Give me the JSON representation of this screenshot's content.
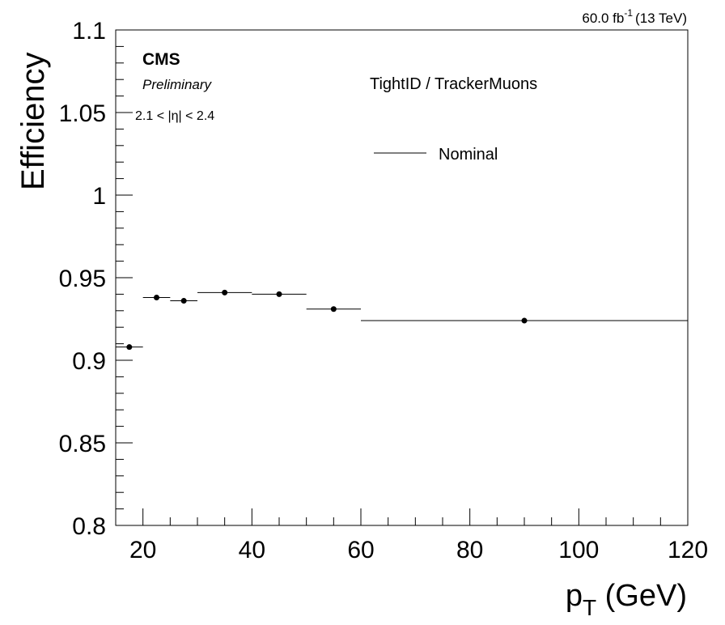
{
  "lumi": {
    "value": "60.0 fb",
    "exp": "-1",
    "energy": "(13 TeV)"
  },
  "labels": {
    "cms": "CMS",
    "preliminary": "Preliminary",
    "eta_range": "2.1 < |η| < 2.4",
    "selection": "TightID / TrackerMuons"
  },
  "chart_data": {
    "type": "scatter",
    "xlabel": {
      "main": "p",
      "sub": "T",
      "unit": " (GeV)"
    },
    "ylabel": "Efficiency",
    "xlim": [
      15,
      120
    ],
    "ylim": [
      0.8,
      1.1
    ],
    "xticks": [
      20,
      40,
      60,
      80,
      100,
      120
    ],
    "yticks": [
      0.8,
      0.85,
      0.9,
      0.95,
      1,
      1.05,
      1.1
    ],
    "ytick_labels": [
      "0.8",
      "0.85",
      "0.9",
      "0.95",
      "1",
      "1.05",
      "1.1"
    ],
    "legend": {
      "position": "top-center",
      "entries": [
        "Nominal"
      ]
    },
    "grid": false,
    "series": [
      {
        "name": "Nominal",
        "color": "#000000",
        "points": [
          {
            "x": 17.5,
            "xlow": 15,
            "xhigh": 20,
            "y": 0.908
          },
          {
            "x": 22.5,
            "xlow": 20,
            "xhigh": 25,
            "y": 0.938
          },
          {
            "x": 27.5,
            "xlow": 25,
            "xhigh": 30,
            "y": 0.936
          },
          {
            "x": 35,
            "xlow": 30,
            "xhigh": 40,
            "y": 0.941
          },
          {
            "x": 45,
            "xlow": 40,
            "xhigh": 50,
            "y": 0.94
          },
          {
            "x": 55,
            "xlow": 50,
            "xhigh": 60,
            "y": 0.931
          },
          {
            "x": 90,
            "xlow": 60,
            "xhigh": 120,
            "y": 0.924
          }
        ]
      }
    ]
  }
}
